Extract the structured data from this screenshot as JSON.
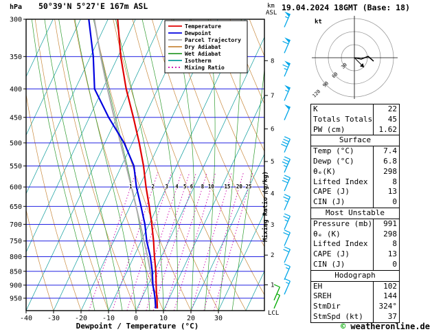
{
  "header": {
    "pressure_unit": "hPa",
    "station_title": "50°39'N 5°27'E 167m ASL",
    "altitude_unit_top": "km",
    "altitude_unit_bottom": "ASL",
    "datetime": "19.04.2024 18GMT (Base: 18)"
  },
  "chart_data": {
    "type": "line",
    "title": "Skew-T log-P sounding 50°39'N 5°27'E 167m ASL 19.04.2024 18GMT",
    "xlabel": "Dewpoint / Temperature (°C)",
    "ylabel": "hPa",
    "mixing_axis_label": "Mixing Ratio (g/kg)",
    "lcl_label": "LCL",
    "x_ticks": [
      -40,
      -30,
      -20,
      -10,
      0,
      10,
      20,
      30
    ],
    "pressure_ticks": [
      300,
      350,
      400,
      450,
      500,
      550,
      600,
      650,
      700,
      750,
      800,
      850,
      900,
      950
    ],
    "km_ticks": [
      [
        1,
        899
      ],
      [
        2,
        795
      ],
      [
        3,
        701
      ],
      [
        4,
        616
      ],
      [
        5,
        540
      ],
      [
        6,
        472
      ],
      [
        7,
        411
      ],
      [
        8,
        356
      ]
    ],
    "mixing_ratio_values": [
      1,
      2,
      3,
      4,
      5,
      6,
      8,
      10,
      15,
      20,
      25
    ],
    "colors": {
      "pressure_grid": "#0000dd",
      "isotherm": "#0b9b9b",
      "dry_adiabat": "#c8883c",
      "wet_adiabat": "#2d9b2d",
      "mixing_ratio": "#cc00aa",
      "frame": "#000000"
    },
    "series": [
      {
        "name": "Parcel Trajectory",
        "color": "#aaaaaa",
        "width": 2,
        "points": [
          [
            991,
            7.4
          ],
          [
            950,
            4.8
          ],
          [
            900,
            1.8
          ],
          [
            850,
            -1.5
          ],
          [
            800,
            -5.0
          ],
          [
            750,
            -9.0
          ],
          [
            700,
            -13.2
          ],
          [
            650,
            -17.8
          ],
          [
            600,
            -22.8
          ],
          [
            550,
            -28.3
          ],
          [
            500,
            -34.3
          ],
          [
            450,
            -41.0
          ],
          [
            400,
            -48.3
          ],
          [
            350,
            -56.3
          ],
          [
            300,
            -65.0
          ]
        ]
      },
      {
        "name": "Dewpoint",
        "color": "#0000e0",
        "width": 2.2,
        "points": [
          [
            991,
            6.8
          ],
          [
            950,
            4.8
          ],
          [
            925,
            3.4
          ],
          [
            900,
            1.8
          ],
          [
            850,
            -0.8
          ],
          [
            800,
            -4.0
          ],
          [
            750,
            -8.0
          ],
          [
            700,
            -11.5
          ],
          [
            650,
            -16.0
          ],
          [
            600,
            -21.0
          ],
          [
            550,
            -25.5
          ],
          [
            500,
            -33.0
          ],
          [
            450,
            -43.0
          ],
          [
            400,
            -53.0
          ],
          [
            350,
            -59.0
          ],
          [
            300,
            -67.0
          ]
        ]
      },
      {
        "name": "Temperature",
        "color": "#e00000",
        "width": 2.2,
        "points": [
          [
            991,
            7.4
          ],
          [
            950,
            5.5
          ],
          [
            925,
            4.2
          ],
          [
            900,
            3.0
          ],
          [
            850,
            0.5
          ],
          [
            800,
            -2.5
          ],
          [
            750,
            -5.5
          ],
          [
            700,
            -9.0
          ],
          [
            650,
            -13.0
          ],
          [
            600,
            -17.5
          ],
          [
            550,
            -22.0
          ],
          [
            500,
            -27.5
          ],
          [
            450,
            -34.0
          ],
          [
            400,
            -41.5
          ],
          [
            350,
            -49.0
          ],
          [
            300,
            -56.5
          ]
        ]
      }
    ],
    "legend": [
      {
        "label": "Temperature",
        "color": "#e00000",
        "dash": ""
      },
      {
        "label": "Dewpoint",
        "color": "#0000e0",
        "dash": ""
      },
      {
        "label": "Parcel Trajectory",
        "color": "#aaaaaa",
        "dash": ""
      },
      {
        "label": "Dry Adiabat",
        "color": "#c8883c",
        "dash": ""
      },
      {
        "label": "Wet Adiabat",
        "color": "#2d9b2d",
        "dash": ""
      },
      {
        "label": "Isotherm",
        "color": "#0b9b9b",
        "dash": ""
      },
      {
        "label": "Mixing Ratio",
        "color": "#cc00aa",
        "dash": "2,3"
      }
    ],
    "wind_barbs": {
      "color": "#00a6e8",
      "levels": [
        [
          310,
          55
        ],
        [
          345,
          60
        ],
        [
          380,
          65
        ],
        [
          420,
          55
        ],
        [
          455,
          50
        ],
        [
          520,
          40
        ],
        [
          565,
          35
        ],
        [
          610,
          30
        ],
        [
          660,
          25
        ],
        [
          715,
          25
        ],
        [
          765,
          20
        ],
        [
          820,
          20
        ],
        [
          880,
          15
        ],
        [
          935,
          15
        ]
      ],
      "surface_color": "#00aa00",
      "surface_levels": [
        [
          958,
          10
        ],
        [
          991,
          5
        ]
      ]
    }
  },
  "hodograph": {
    "unit_label": "kt",
    "ring_values": [
      30,
      60,
      90,
      120
    ],
    "trace": [
      [
        0,
        0
      ],
      [
        10,
        2
      ],
      [
        20,
        -2
      ],
      [
        28,
        5
      ]
    ],
    "storm_vector": [
      14,
      14
    ]
  },
  "table": {
    "sections": [
      {
        "header": null,
        "rows": [
          [
            "K",
            "22"
          ],
          [
            "Totals Totals",
            "45"
          ],
          [
            "PW (cm)",
            "1.62"
          ]
        ]
      },
      {
        "header": "Surface",
        "rows": [
          [
            "Temp (°C)",
            "7.4"
          ],
          [
            "Dewp (°C)",
            "6.8"
          ],
          [
            "θₑ(K)",
            "298"
          ],
          [
            "Lifted Index",
            "8"
          ],
          [
            "CAPE (J)",
            "13"
          ],
          [
            "CIN (J)",
            "0"
          ]
        ]
      },
      {
        "header": "Most Unstable",
        "rows": [
          [
            "Pressure (mb)",
            "991"
          ],
          [
            "θₑ (K)",
            "298"
          ],
          [
            "Lifted Index",
            "8"
          ],
          [
            "CAPE (J)",
            "13"
          ],
          [
            "CIN (J)",
            "0"
          ]
        ]
      },
      {
        "header": "Hodograph",
        "rows": [
          [
            "EH",
            "102"
          ],
          [
            "SREH",
            "144"
          ],
          [
            "StmDir",
            "324°"
          ],
          [
            "StmSpd (kt)",
            "37"
          ]
        ]
      }
    ]
  },
  "footer": {
    "copyright_symbol": "©",
    "copyright_text": "weatheronline.de"
  }
}
